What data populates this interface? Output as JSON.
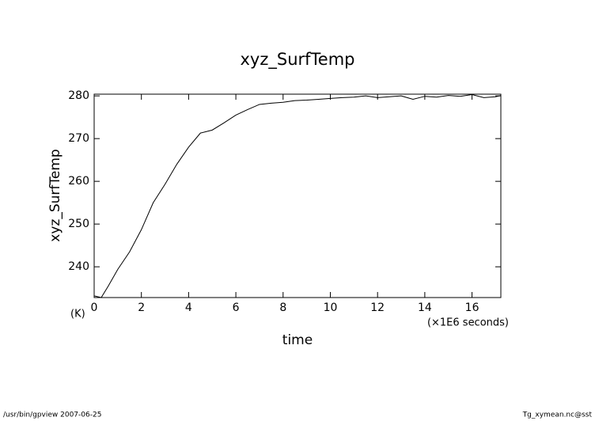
{
  "chart_data": {
    "type": "line",
    "title": "xyz_SurfTemp",
    "y_label": "xyz_SurfTemp",
    "y_units": "(K)",
    "x_label": "time",
    "x_units": "(×1E6 seconds)",
    "x": [
      0,
      0.3,
      0.6,
      1,
      1.5,
      2,
      2.5,
      3,
      3.5,
      4,
      4.5,
      5,
      5.5,
      6,
      6.5,
      7,
      7.5,
      8,
      8.5,
      9,
      9.5,
      10,
      10.5,
      11,
      11.5,
      12,
      12.5,
      13,
      13.5,
      14,
      14.5,
      15,
      15.5,
      16,
      16.5,
      17,
      17.22
    ],
    "series": [
      {
        "name": "xyz_SurfTemp",
        "color": "#000000",
        "values": [
          233.2,
          232.8,
          235.5,
          239.4,
          243.5,
          248.7,
          255,
          259.3,
          264,
          268,
          271.3,
          272,
          273.7,
          275.5,
          276.8,
          278,
          278.3,
          278.5,
          278.9,
          279,
          279.2,
          279.4,
          279.6,
          279.7,
          280,
          279.6,
          279.8,
          280,
          279.2,
          279.9,
          279.7,
          280.1,
          279.9,
          280.3,
          279.6,
          279.8,
          280.1
        ]
      }
    ],
    "xlim": [
      0,
      17.22
    ],
    "ylim": [
      232.8,
      280.4
    ],
    "xticks": [
      0,
      2,
      4,
      6,
      8,
      10,
      12,
      14,
      16
    ],
    "yticks": [
      240,
      250,
      260,
      270,
      280
    ]
  },
  "footer": {
    "left": "/usr/bin/gpview  2007-06-25",
    "right": "Tg_xymean.nc@sst"
  }
}
